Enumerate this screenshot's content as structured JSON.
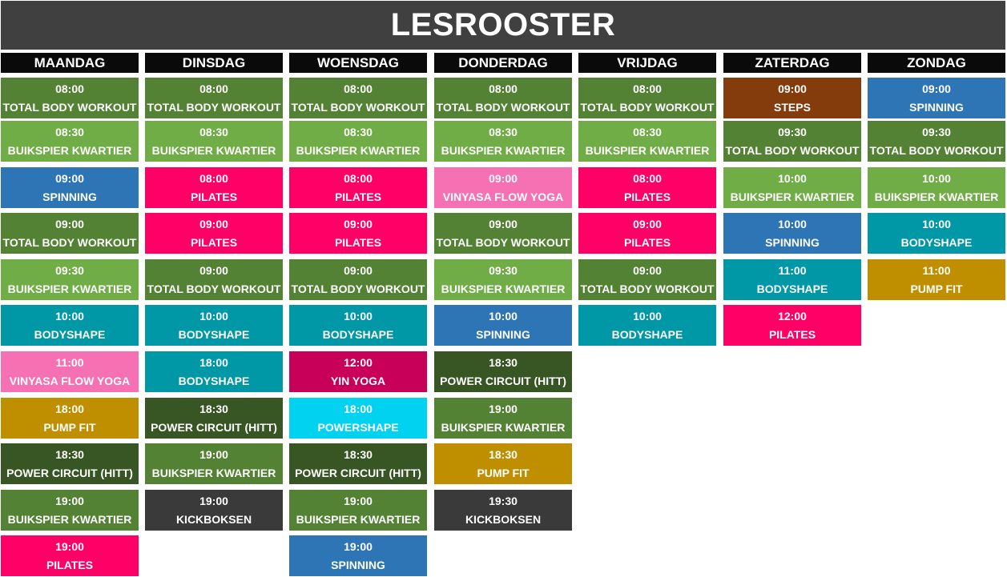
{
  "title": "LESROOSTER",
  "colors": {
    "title_bg": "#404040",
    "header_bg": "#0a0a0a",
    "dark_green": "#548235",
    "light_green": "#70ad47",
    "forest": "#375623",
    "blue": "#2e75b6",
    "pink": "#ff0066",
    "light_pink": "#f571b4",
    "teal": "#0097a7",
    "mustard": "#bf8f00",
    "charcoal": "#3a3a3a",
    "brown": "#843c0c",
    "magenta": "#c8005a",
    "cyan": "#00d2f0"
  },
  "days": [
    {
      "name": "MAANDAG",
      "classes": [
        {
          "time": "08:00",
          "name": "TOTAL BODY WORKOUT",
          "color": "dark_green"
        },
        {
          "time": "08:30",
          "name": "BUIKSPIER KWARTIER",
          "color": "light_green"
        },
        {
          "time": "09:00",
          "name": "SPINNING",
          "color": "blue"
        },
        {
          "time": "09:00",
          "name": "TOTAL BODY WORKOUT",
          "color": "dark_green"
        },
        {
          "time": "09:30",
          "name": "BUIKSPIER KWARTIER",
          "color": "light_green"
        },
        {
          "time": "10:00",
          "name": "BODYSHAPE",
          "color": "teal"
        },
        {
          "time": "11:00",
          "name": "VINYASA FLOW YOGA",
          "color": "light_pink"
        },
        {
          "time": "18:00",
          "name": "PUMP FIT",
          "color": "mustard"
        },
        {
          "time": "18:30",
          "name": "POWER CIRCUIT (HITT)",
          "color": "forest"
        },
        {
          "time": "19:00",
          "name": "BUIKSPIER KWARTIER",
          "color": "dark_green"
        },
        {
          "time": "19:00",
          "name": "PILATES",
          "color": "pink"
        }
      ]
    },
    {
      "name": "DINSDAG",
      "classes": [
        {
          "time": "08:00",
          "name": "TOTAL BODY WORKOUT",
          "color": "dark_green"
        },
        {
          "time": "08:30",
          "name": "BUIKSPIER KWARTIER",
          "color": "light_green"
        },
        {
          "time": "08:00",
          "name": "PILATES",
          "color": "pink"
        },
        {
          "time": "09:00",
          "name": "PILATES",
          "color": "pink"
        },
        {
          "time": "09:00",
          "name": "TOTAL BODY WORKOUT",
          "color": "dark_green"
        },
        {
          "time": "10:00",
          "name": "BODYSHAPE",
          "color": "teal"
        },
        {
          "time": "18:00",
          "name": "BODYSHAPE",
          "color": "teal"
        },
        {
          "time": "18:30",
          "name": "POWER CIRCUIT (HITT)",
          "color": "forest"
        },
        {
          "time": "19:00",
          "name": "BUIKSPIER KWARTIER",
          "color": "dark_green"
        },
        {
          "time": "19:00",
          "name": "KICKBOKSEN",
          "color": "charcoal"
        }
      ]
    },
    {
      "name": "WOENSDAG",
      "classes": [
        {
          "time": "08:00",
          "name": "TOTAL BODY WORKOUT",
          "color": "dark_green"
        },
        {
          "time": "08:30",
          "name": "BUIKSPIER KWARTIER",
          "color": "light_green"
        },
        {
          "time": "08:00",
          "name": "PILATES",
          "color": "pink"
        },
        {
          "time": "09:00",
          "name": "PILATES",
          "color": "pink"
        },
        {
          "time": "09:00",
          "name": "TOTAL BODY WORKOUT",
          "color": "dark_green"
        },
        {
          "time": "10:00",
          "name": "BODYSHAPE",
          "color": "teal"
        },
        {
          "time": "12:00",
          "name": "YIN YOGA",
          "color": "magenta"
        },
        {
          "time": "18:00",
          "name": "POWERSHAPE",
          "color": "cyan"
        },
        {
          "time": "18:30",
          "name": "POWER CIRCUIT (HITT)",
          "color": "forest"
        },
        {
          "time": "19:00",
          "name": "BUIKSPIER KWARTIER",
          "color": "dark_green"
        },
        {
          "time": "19:00",
          "name": "SPINNING",
          "color": "blue"
        }
      ]
    },
    {
      "name": "DONDERDAG",
      "classes": [
        {
          "time": "08:00",
          "name": "TOTAL BODY WORKOUT",
          "color": "dark_green"
        },
        {
          "time": "08:30",
          "name": "BUIKSPIER KWARTIER",
          "color": "light_green"
        },
        {
          "time": "09:00",
          "name": "VINYASA FLOW YOGA",
          "color": "light_pink"
        },
        {
          "time": "09:00",
          "name": "TOTAL BODY WORKOUT",
          "color": "dark_green"
        },
        {
          "time": "09:30",
          "name": "BUIKSPIER KWARTIER",
          "color": "light_green"
        },
        {
          "time": "10:00",
          "name": "SPINNING",
          "color": "blue"
        },
        {
          "time": "18:30",
          "name": "POWER CIRCUIT (HITT)",
          "color": "forest"
        },
        {
          "time": "19:00",
          "name": "BUIKSPIER KWARTIER",
          "color": "dark_green"
        },
        {
          "time": "18:30",
          "name": "PUMP FIT",
          "color": "mustard"
        },
        {
          "time": "19:30",
          "name": "KICKBOKSEN",
          "color": "charcoal"
        }
      ]
    },
    {
      "name": "VRIJDAG",
      "classes": [
        {
          "time": "08:00",
          "name": "TOTAL BODY WORKOUT",
          "color": "dark_green"
        },
        {
          "time": "08:30",
          "name": "BUIKSPIER KWARTIER",
          "color": "light_green"
        },
        {
          "time": "08:00",
          "name": "PILATES",
          "color": "pink"
        },
        {
          "time": "09:00",
          "name": "PILATES",
          "color": "pink"
        },
        {
          "time": "09:00",
          "name": "TOTAL BODY WORKOUT",
          "color": "dark_green"
        },
        {
          "time": "10:00",
          "name": "BODYSHAPE",
          "color": "teal"
        }
      ]
    },
    {
      "name": "ZATERDAG",
      "classes": [
        {
          "time": "09:00",
          "name": "STEPS",
          "color": "brown"
        },
        {
          "time": "09:30",
          "name": "TOTAL BODY WORKOUT",
          "color": "dark_green"
        },
        {
          "time": "10:00",
          "name": "BUIKSPIER KWARTIER",
          "color": "light_green"
        },
        {
          "time": "10:00",
          "name": "SPINNING",
          "color": "blue"
        },
        {
          "time": "11:00",
          "name": "BODYSHAPE",
          "color": "teal"
        },
        {
          "time": "12:00",
          "name": "PILATES",
          "color": "pink"
        }
      ]
    },
    {
      "name": "ZONDAG",
      "classes": [
        {
          "time": "09:00",
          "name": "SPINNING",
          "color": "blue"
        },
        {
          "time": "09:30",
          "name": "TOTAL BODY WORKOUT",
          "color": "dark_green"
        },
        {
          "time": "10:00",
          "name": "BUIKSPIER KWARTIER",
          "color": "light_green"
        },
        {
          "time": "10:00",
          "name": "BODYSHAPE",
          "color": "teal"
        },
        {
          "time": "11:00",
          "name": "PUMP FIT",
          "color": "mustard"
        }
      ]
    }
  ]
}
